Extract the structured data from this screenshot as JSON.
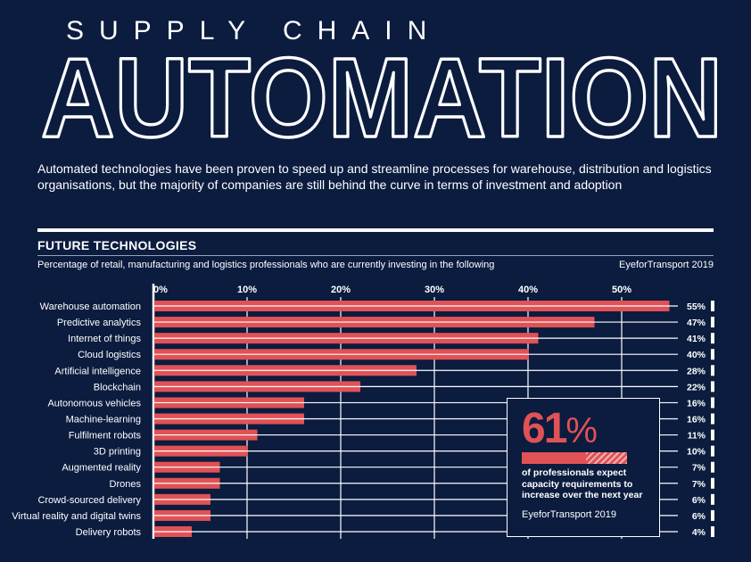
{
  "header": {
    "kicker": "SUPPLY CHAIN",
    "title": "AUTOMATION",
    "intro": "Automated technologies have been proven to speed up and streamline processes for warehouse, distribution and logistics organisations, but the majority of companies are still behind the curve in terms of investment and adoption"
  },
  "section": {
    "title": "FUTURE TECHNOLOGIES",
    "subtitle": "Percentage of retail, manufacturing and logistics professionals who are currently investing in the following",
    "source": "EyeforTransport 2019"
  },
  "colors": {
    "background": "#0b1c3f",
    "bar": "#e05256",
    "text": "#ffffff"
  },
  "chart_data": {
    "type": "bar",
    "orientation": "horizontal",
    "categories": [
      "Warehouse automation",
      "Predictive analytics",
      "Internet of things",
      "Cloud logistics",
      "Artificial intelligence",
      "Blockchain",
      "Autonomous vehicles",
      "Machine-learning",
      "Fulfilment robots",
      "3D printing",
      "Augmented reality",
      "Drones",
      "Crowd-sourced delivery",
      "Virtual reality and digital twins",
      "Delivery robots"
    ],
    "values": [
      55,
      47,
      41,
      40,
      28,
      22,
      16,
      16,
      11,
      10,
      7,
      7,
      6,
      6,
      4
    ],
    "value_labels": [
      "55%",
      "47%",
      "41%",
      "40%",
      "28%",
      "22%",
      "16%",
      "16%",
      "11%",
      "10%",
      "7%",
      "7%",
      "6%",
      "6%",
      "4%"
    ],
    "xticks": [
      0,
      10,
      20,
      30,
      40,
      50
    ],
    "xtick_labels": [
      "0%",
      "10%",
      "20%",
      "30%",
      "40%",
      "50%"
    ],
    "xlim": [
      0,
      55
    ],
    "grid": false
  },
  "callout": {
    "value": "61",
    "unit": "%",
    "percent": 61,
    "text": "of professionals expect capacity requirements to increase over the next year",
    "source": "EyeforTransport 2019"
  }
}
